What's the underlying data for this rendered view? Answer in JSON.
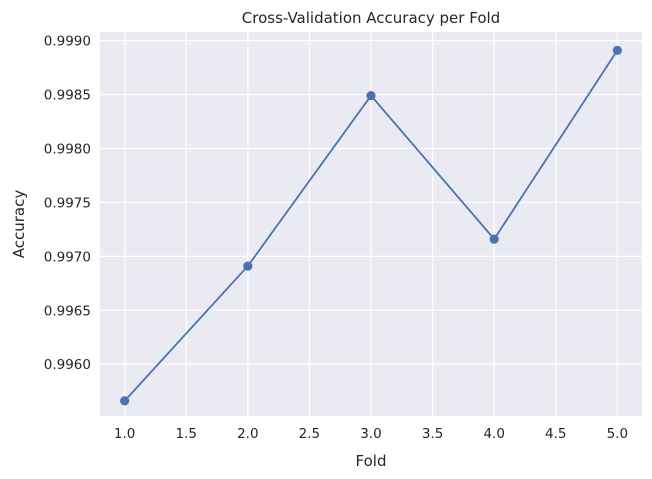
{
  "chart_data": {
    "type": "line",
    "title": "Cross-Validation Accuracy per Fold",
    "xlabel": "Fold",
    "ylabel": "Accuracy",
    "xlim": [
      0.8,
      5.2
    ],
    "ylim": [
      0.99552,
      0.99908
    ],
    "x_ticks": [
      "1.0",
      "1.5",
      "2.0",
      "2.5",
      "3.0",
      "3.5",
      "4.0",
      "4.5",
      "5.0"
    ],
    "y_ticks": [
      "0.9960",
      "0.9965",
      "0.9970",
      "0.9975",
      "0.9980",
      "0.9985",
      "0.9990"
    ],
    "grid": true,
    "series": [
      {
        "x": [
          1,
          2,
          3,
          4,
          5
        ],
        "values": [
          0.99566,
          0.99691,
          0.99849,
          0.99716,
          0.99891
        ],
        "color": "#4c72b0",
        "marker": "circle"
      }
    ]
  },
  "style": {
    "plot_background": "#eaeaf2",
    "grid_color": "#ffffff",
    "text_color": "#262626"
  }
}
